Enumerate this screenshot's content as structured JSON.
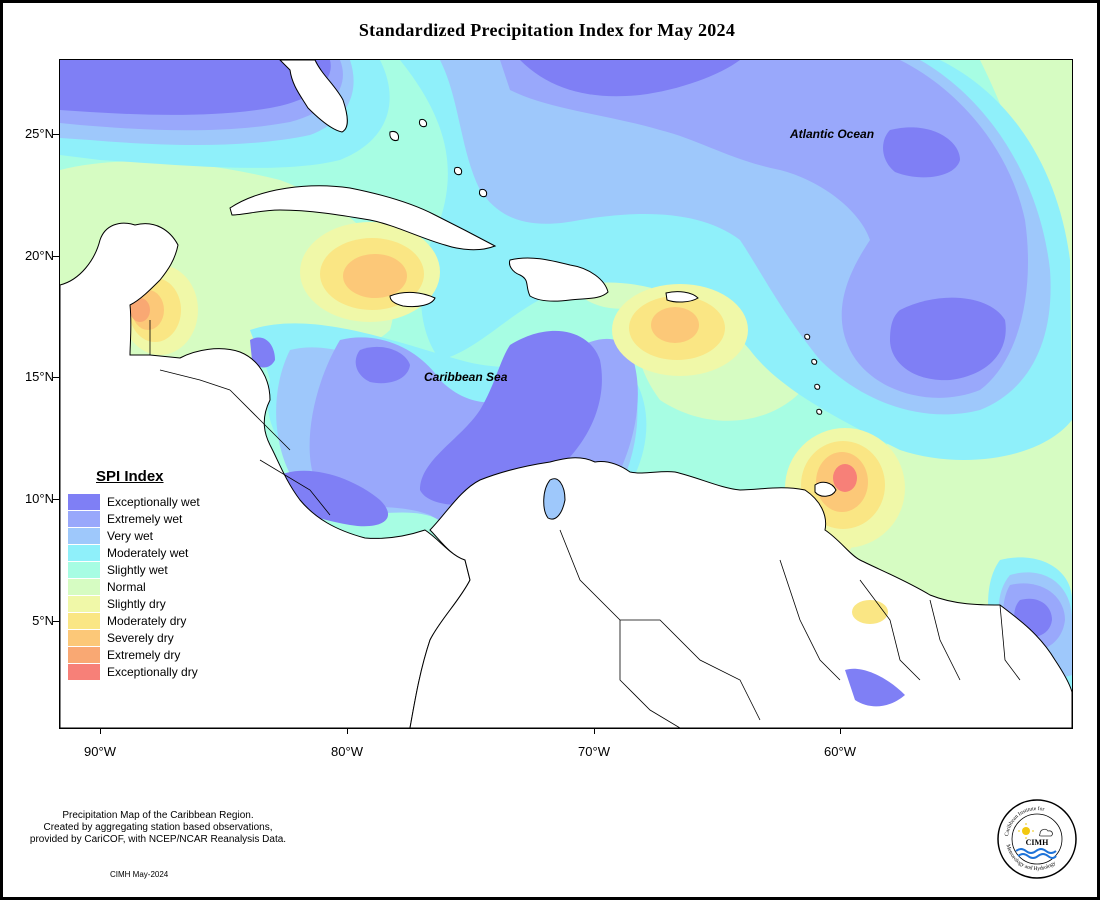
{
  "title": "Standardized Precipitation Index for May 2024",
  "map": {
    "labels": {
      "atlantic": "Atlantic Ocean",
      "caribbean": "Caribbean Sea"
    },
    "lat_ticks": [
      "25°N",
      "20°N",
      "15°N",
      "10°N",
      "5°N"
    ],
    "lon_ticks": [
      "90°W",
      "80°W",
      "70°W",
      "60°W"
    ],
    "colors": {
      "ocean_base": "#a7fde3",
      "land": "#ffffff",
      "coast": "#000000"
    }
  },
  "legend": {
    "title": "SPI Index",
    "items": [
      {
        "label": "Exceptionally wet",
        "color": "#7f7ff5"
      },
      {
        "label": "Extremely wet",
        "color": "#99a8fb"
      },
      {
        "label": "Very wet",
        "color": "#9ec8fb"
      },
      {
        "label": "Moderately wet",
        "color": "#8ff0fa"
      },
      {
        "label": "Slightly wet",
        "color": "#a7fde3"
      },
      {
        "label": "Normal",
        "color": "#d6fcc2"
      },
      {
        "label": "Slightly dry",
        "color": "#f0f8a8"
      },
      {
        "label": "Moderately dry",
        "color": "#fae684"
      },
      {
        "label": "Severely dry",
        "color": "#fcc878"
      },
      {
        "label": "Extremely dry",
        "color": "#f9a873"
      },
      {
        "label": "Exceptionally dry",
        "color": "#f78078"
      }
    ]
  },
  "footer": {
    "note_line1": "Precipitation Map of the Caribbean Region.",
    "note_line2": "Created by aggregating station based observations,",
    "note_line3": "provided by CariCOF, with NCEP/NCAR Reanalysis Data.",
    "credit": "CIMH May-2024",
    "logo_text": "CIMH",
    "logo_ring_text": "Caribbean Institute for Meteorology and Hydrology"
  }
}
